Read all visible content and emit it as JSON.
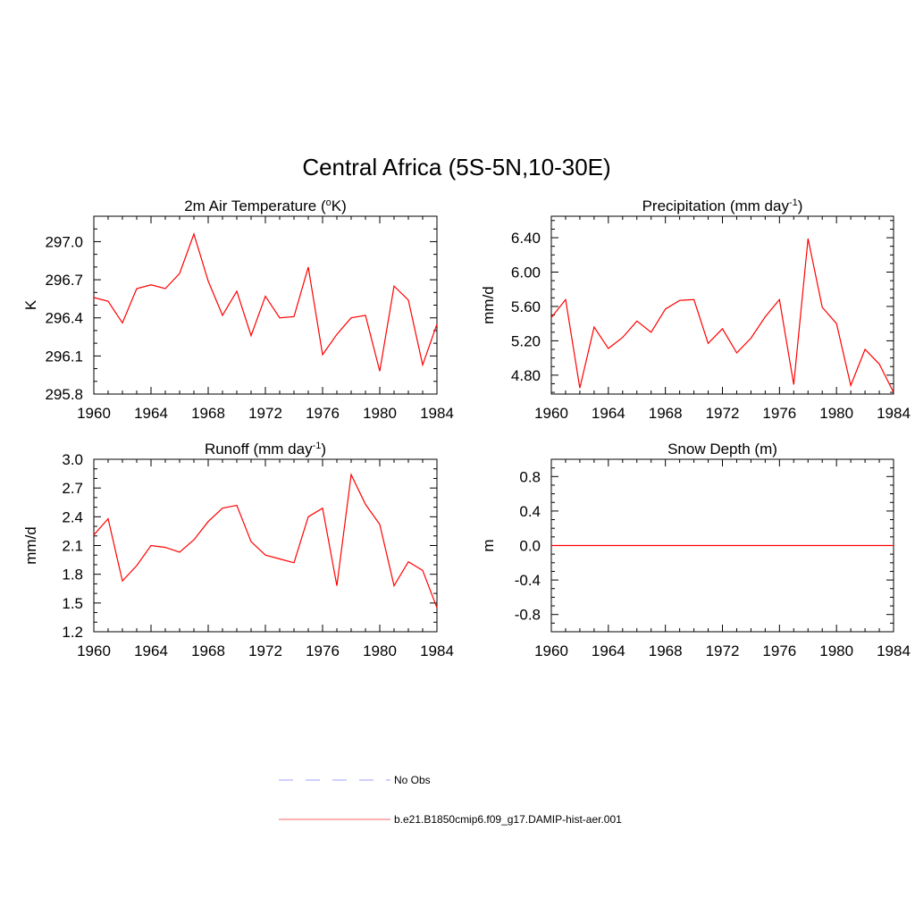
{
  "page": {
    "title": "Central Africa (5S-5N,10-30E)"
  },
  "chart_data": [
    {
      "type": "line",
      "title": "2m Air Temperature (",
      "title_sup": "o",
      "title_tail": "K)",
      "ylabel": "K",
      "x": [
        1960,
        1961,
        1962,
        1963,
        1964,
        1965,
        1966,
        1967,
        1968,
        1969,
        1970,
        1971,
        1972,
        1973,
        1974,
        1975,
        1976,
        1977,
        1978,
        1979,
        1980,
        1981,
        1982,
        1983,
        1984
      ],
      "series": [
        {
          "name": "b.e21.B1850cmip6.f09_g17.DAMIP-hist-aer.001",
          "color": "#ff0000",
          "values": [
            296.56,
            296.53,
            296.36,
            296.63,
            296.66,
            296.63,
            296.75,
            297.06,
            296.69,
            296.42,
            296.61,
            296.26,
            296.57,
            296.4,
            296.41,
            296.8,
            296.11,
            296.27,
            296.4,
            296.42,
            295.98,
            296.65,
            296.54,
            296.03,
            296.35
          ]
        }
      ],
      "xlim": [
        1960,
        1984
      ],
      "ylim": [
        295.8,
        297.2
      ],
      "xticks": [
        "1960",
        "1964",
        "1968",
        "1972",
        "1976",
        "1980",
        "1984"
      ],
      "yticks": [
        "295.8",
        "296.1",
        "296.4",
        "296.7",
        "297.0"
      ]
    },
    {
      "type": "line",
      "title": "Precipitation (mm day",
      "title_sup": "-1",
      "title_tail": ")",
      "ylabel": "mm/d",
      "x": [
        1960,
        1961,
        1962,
        1963,
        1964,
        1965,
        1966,
        1967,
        1968,
        1969,
        1970,
        1971,
        1972,
        1973,
        1974,
        1975,
        1976,
        1977,
        1978,
        1979,
        1980,
        1981,
        1982,
        1983,
        1984
      ],
      "series": [
        {
          "name": "b.e21.B1850cmip6.f09_g17.DAMIP-hist-aer.001",
          "color": "#ff0000",
          "values": [
            5.47,
            5.68,
            4.65,
            5.36,
            5.11,
            5.24,
            5.43,
            5.3,
            5.57,
            5.67,
            5.68,
            5.17,
            5.34,
            5.06,
            5.23,
            5.48,
            5.68,
            4.69,
            6.39,
            5.59,
            5.4,
            4.68,
            5.1,
            4.93,
            4.6
          ]
        }
      ],
      "xlim": [
        1960,
        1984
      ],
      "ylim": [
        4.58,
        6.65
      ],
      "xticks": [
        "1960",
        "1964",
        "1968",
        "1972",
        "1976",
        "1980",
        "1984"
      ],
      "yticks": [
        "4.80",
        "5.20",
        "5.60",
        "6.00",
        "6.40"
      ]
    },
    {
      "type": "line",
      "title": "Runoff (mm day",
      "title_sup": "-1",
      "title_tail": ")",
      "ylabel": "mm/d",
      "x": [
        1960,
        1961,
        1962,
        1963,
        1964,
        1965,
        1966,
        1967,
        1968,
        1969,
        1970,
        1971,
        1972,
        1973,
        1974,
        1975,
        1976,
        1977,
        1978,
        1979,
        1980,
        1981,
        1982,
        1983,
        1984
      ],
      "series": [
        {
          "name": "b.e21.B1850cmip6.f09_g17.DAMIP-hist-aer.001",
          "color": "#ff0000",
          "values": [
            2.21,
            2.38,
            1.73,
            1.89,
            2.1,
            2.08,
            2.03,
            2.16,
            2.35,
            2.49,
            2.52,
            2.14,
            2.0,
            1.96,
            1.92,
            2.4,
            2.49,
            1.68,
            2.84,
            2.53,
            2.32,
            1.68,
            1.93,
            1.84,
            1.45
          ]
        }
      ],
      "xlim": [
        1960,
        1984
      ],
      "ylim": [
        1.2,
        3.0
      ],
      "xticks": [
        "1960",
        "1964",
        "1968",
        "1972",
        "1976",
        "1980",
        "1984"
      ],
      "yticks": [
        "1.2",
        "1.5",
        "1.8",
        "2.1",
        "2.4",
        "2.7",
        "3.0"
      ]
    },
    {
      "type": "line",
      "title": "Snow Depth (m)",
      "title_sup": "",
      "title_tail": "",
      "ylabel": "m",
      "x": [
        1960,
        1961,
        1962,
        1963,
        1964,
        1965,
        1966,
        1967,
        1968,
        1969,
        1970,
        1971,
        1972,
        1973,
        1974,
        1975,
        1976,
        1977,
        1978,
        1979,
        1980,
        1981,
        1982,
        1983,
        1984
      ],
      "series": [
        {
          "name": "b.e21.B1850cmip6.f09_g17.DAMIP-hist-aer.001",
          "color": "#ff0000",
          "values": [
            0,
            0,
            0,
            0,
            0,
            0,
            0,
            0,
            0,
            0,
            0,
            0,
            0,
            0,
            0,
            0,
            0,
            0,
            0,
            0,
            0,
            0,
            0,
            0,
            0
          ]
        }
      ],
      "xlim": [
        1960,
        1984
      ],
      "ylim": [
        -1.0,
        1.0
      ],
      "xticks": [
        "1960",
        "1964",
        "1968",
        "1972",
        "1976",
        "1980",
        "1984"
      ],
      "yticks": [
        "-0.8",
        "-0.4",
        "0.0",
        "0.4",
        "0.8"
      ]
    }
  ],
  "legend": {
    "items": [
      {
        "label": "No Obs",
        "color": "#b3b3ff",
        "style": "dashed"
      },
      {
        "label": "b.e21.B1850cmip6.f09_g17.DAMIP-hist-aer.001",
        "color": "#ff8080",
        "style": "solid"
      }
    ]
  }
}
